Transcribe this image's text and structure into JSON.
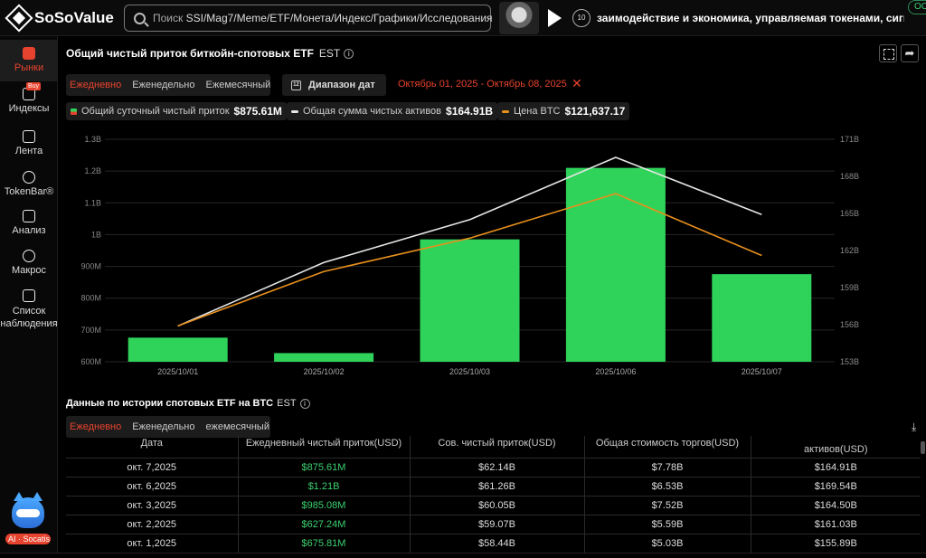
{
  "brand": {
    "name": "SoSoValue"
  },
  "search": {
    "prefix": "Поиск",
    "terms": "SSI/Mag7/Meme/ETF/Монета/Индекс/Графики/Исследования"
  },
  "topbar": {
    "ticker_text": "заимодействие и экономика, управляемая токенами, сигнализиру",
    "counter": "10",
    "badge": "OO"
  },
  "sidebar": {
    "items": [
      {
        "label": "Рынки",
        "icon": "chart-icon"
      },
      {
        "label": "Индексы",
        "icon": "ssi-icon",
        "badge": "Buy"
      },
      {
        "label": "Лента",
        "icon": "feed-icon"
      },
      {
        "label": "TokenBar®",
        "icon": "tokenbar-icon"
      },
      {
        "label": "Анализ",
        "icon": "data-icon"
      },
      {
        "label": "Макрос",
        "icon": "macro-icon"
      },
      {
        "label": "Список наблюдения",
        "icon": "watchlist-icon"
      }
    ],
    "ai_label": "AI · Socatis"
  },
  "panel": {
    "title": "Общий чистый приток биткойн-спотовых ETF",
    "tz": "EST",
    "tabs": [
      "Ежедневно",
      "Еженедельно",
      "Ежемесячный"
    ],
    "date_button": "Диапазон дат",
    "date_range": "Октябрь 01, 2025 - Октябрь 08, 2025"
  },
  "legend": {
    "inflow_label": "Общий суточный чистый приток",
    "inflow_value": "$875.61M",
    "assets_label": "Общая сумма чистых активов",
    "assets_value": "$164.91B",
    "btc_label": "Цена BTC",
    "btc_value": "$121,637.17"
  },
  "colors": {
    "bar": "#2fd35a",
    "assets_line": "#e6e6e6",
    "btc_line": "#e8901c",
    "accent": "#e8432e"
  },
  "chart_data": {
    "type": "bar",
    "categories": [
      "2025/10/01",
      "2025/10/02",
      "2025/10/03",
      "2025/10/06",
      "2025/10/07"
    ],
    "series": [
      {
        "name": "Общий суточный чистый приток",
        "type": "bar",
        "axis": "left",
        "values": [
          675.81,
          627.24,
          985.08,
          1210,
          875.61
        ]
      },
      {
        "name": "Общая сумма чистых активов",
        "type": "line",
        "axis": "right",
        "values": [
          155.89,
          161.03,
          164.5,
          169.54,
          164.91
        ]
      },
      {
        "name": "Цена BTC",
        "type": "line",
        "axis": "right",
        "values": [
          155.9,
          160.3,
          163.0,
          166.6,
          161.6
        ]
      }
    ],
    "left_axis": {
      "ylim": [
        600,
        1300
      ],
      "ticks": [
        "600M",
        "700M",
        "800M",
        "900M",
        "1B",
        "1.1B",
        "1.2B",
        "1.3B"
      ]
    },
    "right_axis": {
      "ylim": [
        153,
        171
      ],
      "ticks": [
        "153B",
        "156B",
        "159B",
        "162B",
        "165B",
        "168B",
        "171B"
      ]
    },
    "grid": "horizontal"
  },
  "history": {
    "title": "Данные по истории спотовых ETF на BTC",
    "tz": "EST",
    "tabs": [
      "Ежедневно",
      "Еженедельно",
      "ежемесячный"
    ],
    "columns": [
      "Дата",
      "Ежедневный чистый приток(USD)",
      "Сов. чистый приток(USD)",
      "Общая стоимость торгов(USD)",
      "активов(USD)"
    ],
    "rows": [
      [
        "окт. 7,2025",
        "$875.61M",
        "$62.14B",
        "$7.78B",
        "$164.91B"
      ],
      [
        "окт. 6,2025",
        "$1.21B",
        "$61.26B",
        "$6.53B",
        "$169.54B"
      ],
      [
        "окт. 3,2025",
        "$985.08M",
        "$60.05B",
        "$7.52B",
        "$164.50B"
      ],
      [
        "окт. 2,2025",
        "$627.24M",
        "$59.07B",
        "$5.59B",
        "$161.03B"
      ],
      [
        "окт. 1,2025",
        "$675.81M",
        "$58.44B",
        "$5.03B",
        "$155.89B"
      ]
    ]
  }
}
